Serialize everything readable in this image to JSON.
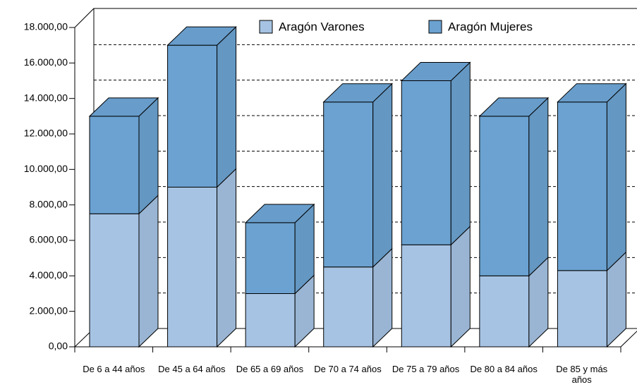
{
  "chart_data": {
    "type": "bar3d_stacked",
    "categories": [
      "De 6 a 44 años",
      "De 45 a 64 años",
      "De 65 a 69 años",
      "De 70 a 74 años",
      "De 75 a 79 años",
      "De 80 a 84 años",
      "De 85 y más años"
    ],
    "series": [
      {
        "name": "Aragón Varones",
        "color": "#a6c3e3",
        "values": [
          7500,
          9000,
          3000,
          4500,
          5750,
          4000,
          4300
        ]
      },
      {
        "name": "Aragón Mujeres",
        "color": "#6ba2d1",
        "values": [
          5500,
          8000,
          4000,
          9300,
          9250,
          9000,
          9500
        ]
      }
    ],
    "ylim": [
      0,
      18000
    ],
    "yticks": [
      {
        "value": 0,
        "label": "0,00"
      },
      {
        "value": 2000,
        "label": "2.000,00"
      },
      {
        "value": 4000,
        "label": "4.000,00"
      },
      {
        "value": 6000,
        "label": "6.000,00"
      },
      {
        "value": 8000,
        "label": "8.000,00"
      },
      {
        "value": 10000,
        "label": "10.000,00"
      },
      {
        "value": 12000,
        "label": "12.000,00"
      },
      {
        "value": 14000,
        "label": "14.000,00"
      },
      {
        "value": 16000,
        "label": "16.000,00"
      },
      {
        "value": 18000,
        "label": "18.000,00"
      }
    ],
    "grid": true,
    "legend": "top"
  }
}
